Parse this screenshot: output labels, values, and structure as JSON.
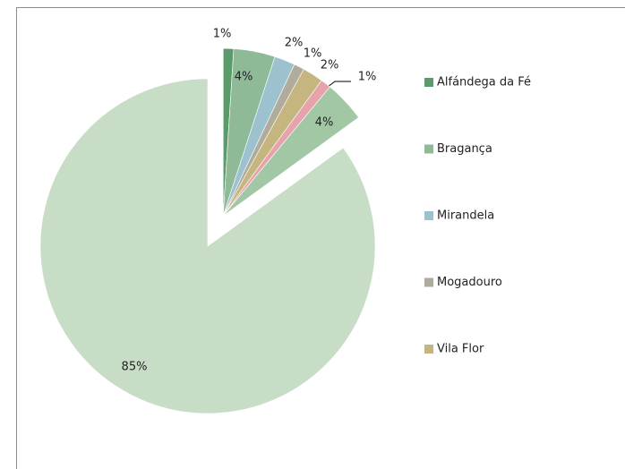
{
  "chart_data": {
    "type": "pie",
    "categories": [
      "Alfándega da Fé",
      "Bragança",
      "Mirandela",
      "Mogadouro",
      "Vila Flor",
      null,
      null,
      null
    ],
    "values": [
      1,
      4,
      2,
      1,
      2,
      1,
      4,
      85
    ],
    "value_labels": [
      "1%",
      "4%",
      "2%",
      "1%",
      "2%",
      "1%",
      "4%",
      "85%"
    ],
    "colors": [
      "#5b9a6a",
      "#8fba97",
      "#9cc2cf",
      "#b1ab9c",
      "#c5b57f",
      "#e7a3ab",
      "#a2c7a5",
      "#c7ddc5"
    ],
    "exploded": [
      true,
      true,
      true,
      true,
      true,
      true,
      true,
      false
    ],
    "legend": "right"
  }
}
